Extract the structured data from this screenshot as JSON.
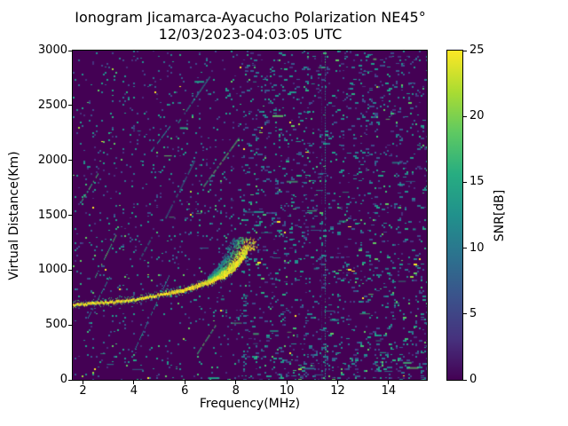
{
  "chart_data": {
    "type": "heatmap",
    "title": "Ionogram Jicamarca-Ayacucho Polarization NE45°",
    "subtitle": "12/03/2023-04:03:05 UTC",
    "xlabel": "Frequency(MHz)",
    "ylabel": "Virtual Distance(Km)",
    "xlim": [
      1.6,
      15.5
    ],
    "ylim": [
      0,
      3000
    ],
    "x_ticks": [
      2,
      4,
      6,
      8,
      10,
      12,
      14
    ],
    "y_ticks": [
      0,
      500,
      1000,
      1500,
      2000,
      2500,
      3000
    ],
    "grid": false,
    "background_color": "#440154",
    "colorbar": {
      "label": "SNR[dB]",
      "min": 0,
      "max": 25,
      "ticks": [
        0,
        5,
        10,
        15,
        20,
        25
      ],
      "colormap": "viridis",
      "stops": [
        {
          "pos": 0.0,
          "color": "#440154"
        },
        {
          "pos": 0.125,
          "color": "#46327e"
        },
        {
          "pos": 0.25,
          "color": "#3b528b"
        },
        {
          "pos": 0.375,
          "color": "#2c728e"
        },
        {
          "pos": 0.5,
          "color": "#21918c"
        },
        {
          "pos": 0.625,
          "color": "#27ad81"
        },
        {
          "pos": 0.75,
          "color": "#5ec962"
        },
        {
          "pos": 0.875,
          "color": "#aadc32"
        },
        {
          "pos": 1.0,
          "color": "#fde725"
        }
      ]
    },
    "echo_trace": {
      "description": "F-layer echo trace, virtual distance (km) vs frequency (MHz), peak SNR ~25 dB",
      "points": [
        [
          1.6,
          685
        ],
        [
          2.0,
          692
        ],
        [
          3.0,
          710
        ],
        [
          4.0,
          730
        ],
        [
          5.0,
          775
        ],
        [
          6.0,
          820
        ],
        [
          6.5,
          858
        ],
        [
          7.0,
          900
        ],
        [
          7.5,
          950
        ],
        [
          7.8,
          1000
        ],
        [
          8.0,
          1045
        ],
        [
          8.2,
          1105
        ],
        [
          8.45,
          1180
        ]
      ],
      "critical_frequency_mhz": 8.5,
      "spread_top_km": 1300,
      "spread": {
        "f_start": 6.9,
        "f_end": 8.8,
        "dots": 1500
      }
    },
    "rfi_lines": [
      {
        "mhz": 11.35,
        "style": "faint"
      },
      {
        "mhz": 11.5,
        "style": "dotted"
      }
    ],
    "noise": {
      "seed": 1337,
      "sparse_density": 0.052,
      "dense_density": 0.085,
      "split_mhz": 8.2,
      "palette": {
        "dim": [
          "#46327e",
          "#3e4c8a",
          "#375a8c"
        ],
        "mid": [
          "#2c718e",
          "#26828e",
          "#21918c",
          "#1fa088"
        ],
        "green": [
          "#28ae80",
          "#3fbc73",
          "#5ec962"
        ],
        "bright": [
          "#a0da39",
          "#fde725"
        ]
      },
      "horizontal_streaks_right": 48,
      "horizontal_streaks_left": 14,
      "diagonal_streaks_left": 10
    }
  }
}
